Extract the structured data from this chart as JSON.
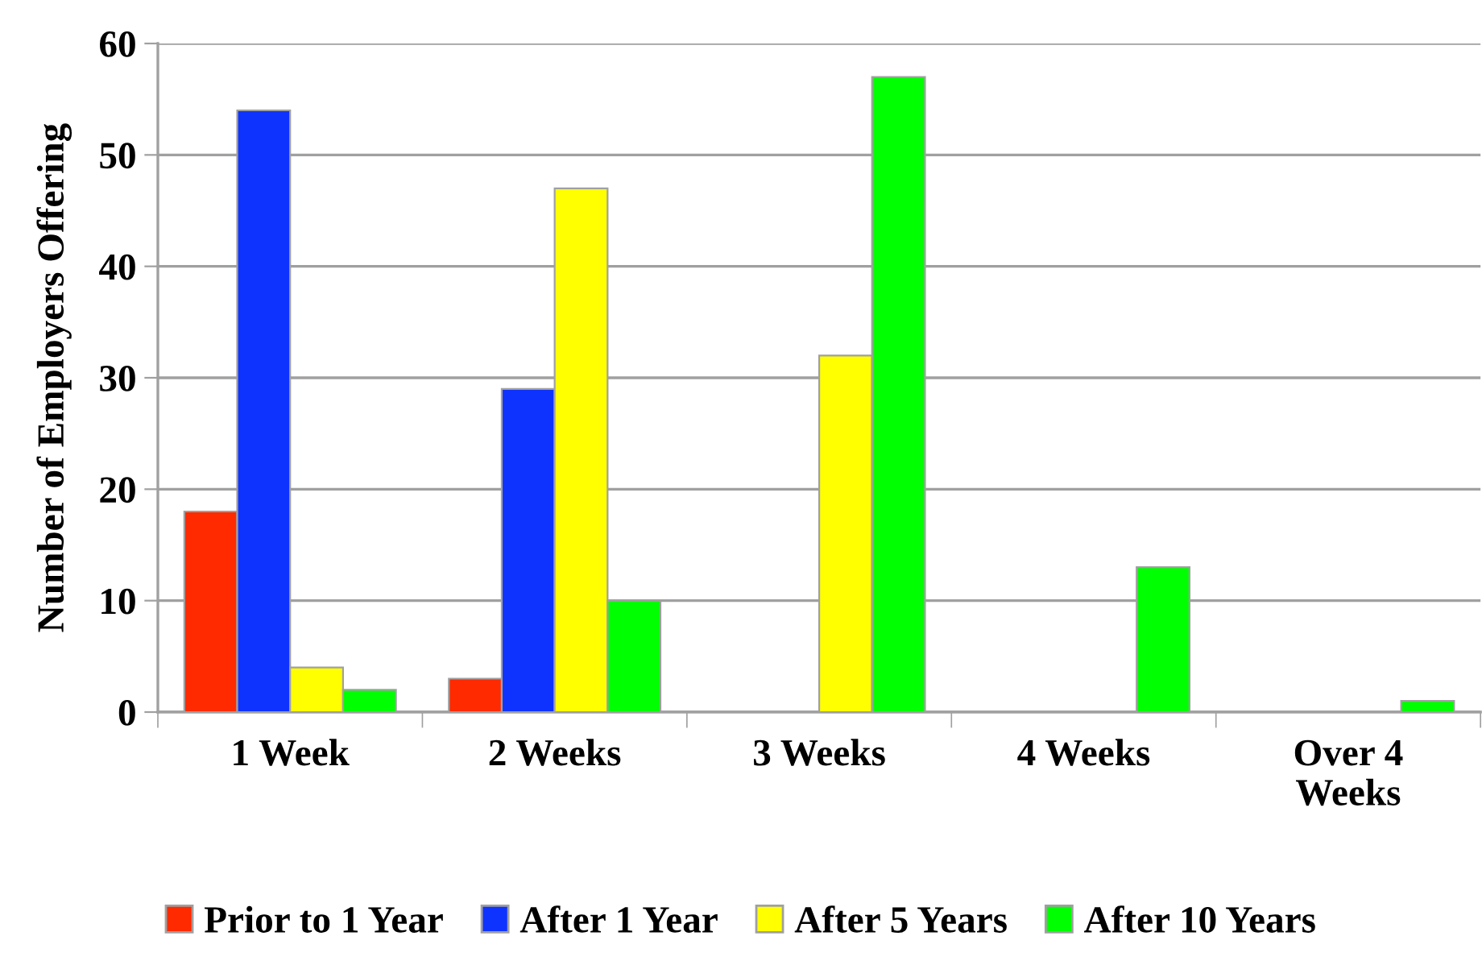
{
  "chart_data": {
    "type": "bar",
    "ylabel": "Number of Employers Offering",
    "categories": [
      "1 Week",
      "2 Weeks",
      "3 Weeks",
      "4 Weeks",
      "Over 4\nWeeks"
    ],
    "series": [
      {
        "name": "Prior to 1 Year",
        "color": "#ff2a00",
        "values": [
          18,
          3,
          null,
          null,
          null
        ]
      },
      {
        "name": "After 1 Year",
        "color": "#0f33ff",
        "values": [
          54,
          29,
          null,
          null,
          null
        ]
      },
      {
        "name": "After 5 Years",
        "color": "#ffff00",
        "values": [
          4,
          47,
          32,
          null,
          null
        ]
      },
      {
        "name": "After 10 Years",
        "color": "#00ff00",
        "values": [
          2,
          10,
          57,
          13,
          1
        ]
      }
    ],
    "ylim": [
      0,
      60
    ],
    "yticks": [
      0,
      10,
      20,
      30,
      40,
      50,
      60
    ],
    "grid": "y",
    "legend": "bottom"
  }
}
